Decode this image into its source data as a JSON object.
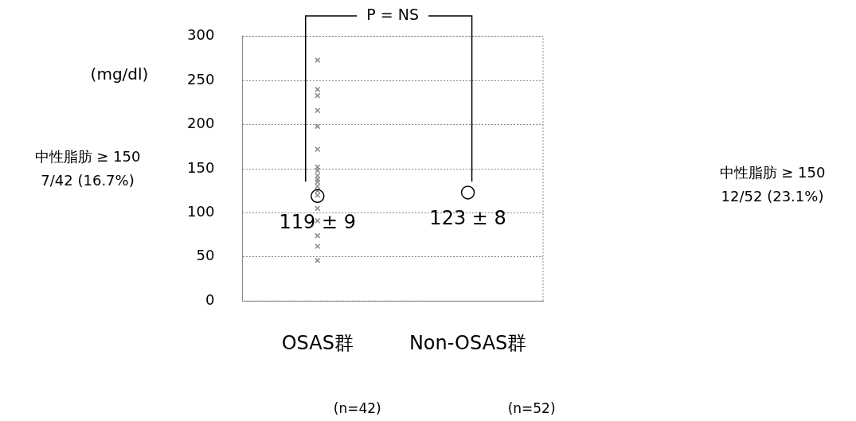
{
  "chart_data": {
    "type": "scatter",
    "ylabel": "(mg/dl)",
    "categories": [
      "OSAS群",
      "Non-OSAS群"
    ],
    "ylim": [
      0,
      300
    ],
    "yticks": [
      0,
      50,
      100,
      150,
      200,
      250,
      300
    ],
    "grid": "y",
    "legend": false,
    "series": [
      {
        "color": "#000000",
        "marker": "circle",
        "values": [
          119,
          123
        ],
        "value_labels": [
          "119 ± 9",
          "123 ± 8"
        ]
      },
      {
        "color": "#888888",
        "marker": "cross",
        "x": [
          "OSAS群",
          "OSAS群",
          "OSAS群",
          "OSAS群",
          "OSAS群",
          "OSAS群",
          "OSAS群",
          "OSAS群",
          "OSAS群",
          "OSAS群",
          "OSAS群",
          "OSAS群",
          "OSAS群",
          "OSAS群",
          "OSAS群",
          "OSAS群",
          "OSAS群",
          "OSAS群",
          "OSAS群"
        ],
        "values": [
          273,
          240,
          233,
          216,
          198,
          172,
          152,
          148,
          142,
          138,
          135,
          130,
          125,
          120,
          105,
          91,
          74,
          62,
          46
        ]
      }
    ],
    "annotations": [
      "P = NS",
      "中性脂肪 ≥ 150\n7/42 (16.7%)",
      "中性脂肪 ≥ 150\n12/52 (23.1%)",
      "(n=42)",
      "(n=52)"
    ]
  }
}
